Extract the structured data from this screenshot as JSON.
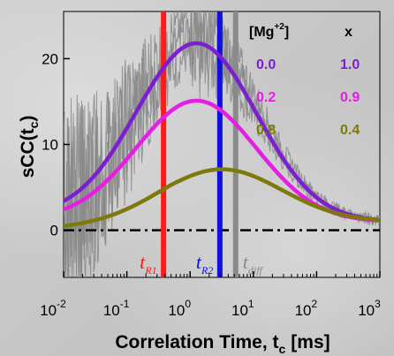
{
  "chart_data": {
    "type": "line",
    "xlabel": "Correlation Time, t",
    "xlabel_subscript": "c",
    "xlabel_unit": "[ms]",
    "ylabel": "sCC(t",
    "ylabel_subscript": "c",
    "ylabel_close": ")",
    "xscale": "log",
    "xlim_exp": [
      -2,
      3
    ],
    "ylim": [
      -5.5,
      25.5
    ],
    "x_tick_base": "10",
    "x_tick_exponents": [
      "-2",
      "-1",
      "0",
      "1",
      "2",
      "3"
    ],
    "y_ticks": [
      "0",
      "10",
      "20"
    ],
    "legend": {
      "header_mg": "[Mg",
      "header_mg_sup": "+2",
      "header_mg_close": "]",
      "header_x": "x",
      "rows": [
        {
          "mg": "0.0",
          "x": "1.0",
          "color": "#7b1fd1"
        },
        {
          "mg": "0.2",
          "x": "0.9",
          "color": "#e51ee5"
        },
        {
          "mg": "0.8",
          "x": "0.4",
          "color": "#7d7a0c"
        }
      ]
    },
    "series": [
      {
        "color": "#7b1fd1",
        "log_peak": 0.1,
        "peak": 21.8,
        "baseline": 1.0,
        "width": 0.95,
        "left_value": 1.6
      },
      {
        "color": "#e51ee5",
        "log_peak": 0.1,
        "peak": 15.1,
        "baseline": 1.0,
        "width": 0.95,
        "left_value": 1.2
      },
      {
        "color": "#7d7a0c",
        "log_peak": 0.5,
        "peak": 7.1,
        "baseline": 1.0,
        "width": 0.95,
        "left_value": 0.3
      }
    ],
    "raw_data_color": "#888888",
    "zero_line": {
      "y": 0
    },
    "markers": [
      {
        "label": "t",
        "subscript": "R1",
        "log_x": -0.42,
        "color": "#ff1a1a"
      },
      {
        "label": "t",
        "subscript": "R2",
        "log_x": 0.47,
        "color": "#1010e0"
      },
      {
        "label": "t",
        "subscript": "diff",
        "log_x": 0.72,
        "color": "#8a8a8a"
      }
    ]
  }
}
